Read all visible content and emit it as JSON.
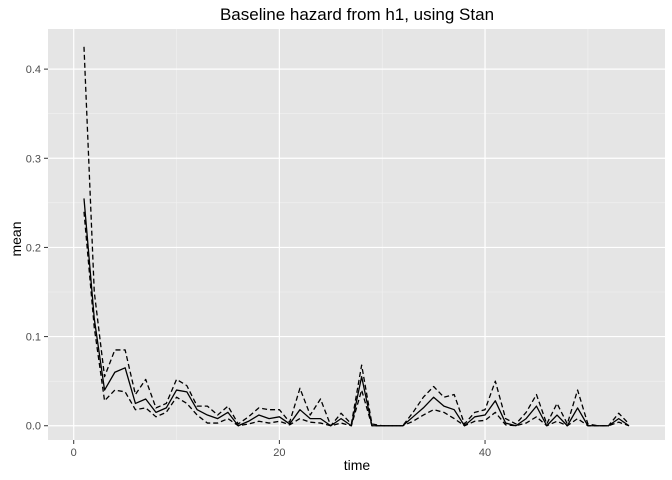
{
  "chart_data": {
    "type": "line",
    "title": "Baseline hazard from h1, using Stan",
    "xlabel": "time",
    "ylabel": "mean",
    "xlim": [
      -2.5,
      57.5
    ],
    "ylim": [
      -0.016,
      0.445
    ],
    "x_ticks": [
      0,
      20,
      40
    ],
    "x_tick_labels": [
      "0",
      "20",
      "40"
    ],
    "y_ticks": [
      0.0,
      0.1,
      0.2,
      0.3,
      0.4
    ],
    "y_tick_labels": [
      "0.0",
      "0.1",
      "0.2",
      "0.3",
      "0.4"
    ],
    "grid": true,
    "legend": "none",
    "colors": {
      "panel": "#e5e5e5",
      "grid_major": "#ffffff",
      "grid_minor": "#f2f2f2",
      "line": "#000000",
      "tick_label": "#4d4d4d"
    },
    "x": [
      1,
      2,
      3,
      4,
      5,
      6,
      7,
      8,
      9,
      10,
      11,
      12,
      13,
      14,
      15,
      16,
      17,
      18,
      19,
      20,
      21,
      22,
      23,
      24,
      25,
      26,
      27,
      28,
      29,
      30,
      31,
      32,
      33,
      34,
      35,
      36,
      37,
      38,
      39,
      40,
      41,
      42,
      43,
      44,
      45,
      46,
      47,
      48,
      49,
      50,
      51,
      52,
      53,
      54
    ],
    "series": [
      {
        "style": "solid",
        "values": [
          0.255,
          0.12,
          0.04,
          0.06,
          0.065,
          0.025,
          0.03,
          0.015,
          0.02,
          0.04,
          0.038,
          0.018,
          0.012,
          0.008,
          0.015,
          0.0,
          0.005,
          0.012,
          0.008,
          0.01,
          0.002,
          0.018,
          0.008,
          0.008,
          0.0,
          0.008,
          0.0,
          0.055,
          0.0,
          0.0,
          0.0,
          0.0,
          0.01,
          0.02,
          0.032,
          0.022,
          0.018,
          0.0,
          0.01,
          0.012,
          0.028,
          0.003,
          0.0,
          0.008,
          0.022,
          0.0,
          0.012,
          0.0,
          0.02,
          0.0,
          0.0,
          0.0,
          0.008,
          0.0
        ]
      },
      {
        "style": "dashed",
        "values": [
          0.425,
          0.15,
          0.055,
          0.085,
          0.085,
          0.035,
          0.052,
          0.02,
          0.025,
          0.052,
          0.045,
          0.022,
          0.022,
          0.012,
          0.022,
          0.002,
          0.01,
          0.02,
          0.018,
          0.018,
          0.004,
          0.042,
          0.012,
          0.03,
          0.0,
          0.014,
          0.002,
          0.068,
          0.002,
          0.0,
          0.0,
          0.0,
          0.015,
          0.032,
          0.044,
          0.032,
          0.035,
          0.002,
          0.015,
          0.018,
          0.05,
          0.008,
          0.002,
          0.015,
          0.035,
          0.002,
          0.025,
          0.002,
          0.04,
          0.002,
          0.0,
          0.0,
          0.014,
          0.002
        ]
      },
      {
        "style": "dashed",
        "values": [
          0.24,
          0.11,
          0.028,
          0.04,
          0.038,
          0.018,
          0.02,
          0.01,
          0.015,
          0.032,
          0.025,
          0.012,
          0.003,
          0.003,
          0.008,
          0.0,
          0.002,
          0.005,
          0.003,
          0.005,
          0.001,
          0.008,
          0.004,
          0.003,
          0.0,
          0.003,
          0.0,
          0.04,
          0.0,
          0.0,
          0.0,
          0.0,
          0.005,
          0.012,
          0.018,
          0.015,
          0.008,
          0.0,
          0.005,
          0.006,
          0.015,
          0.001,
          0.0,
          0.003,
          0.01,
          0.0,
          0.005,
          0.0,
          0.008,
          0.0,
          0.0,
          0.0,
          0.004,
          0.0
        ]
      }
    ]
  }
}
